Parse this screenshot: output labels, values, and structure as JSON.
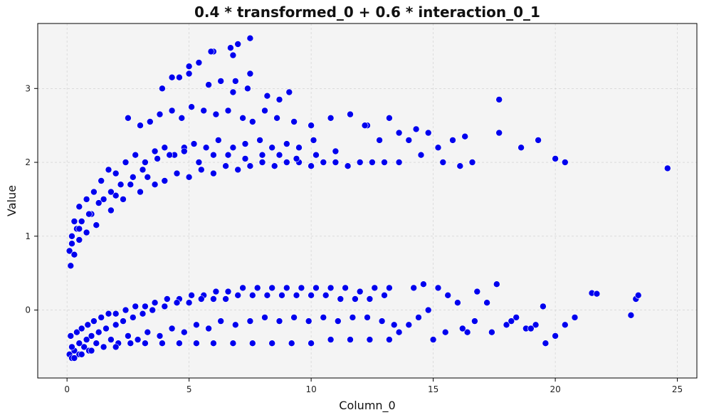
{
  "chart_data": {
    "type": "scatter",
    "title": "0.4 * transformed_0 + 0.6 * interaction_0_1",
    "xlabel": "Column_0",
    "ylabel": "Value",
    "xlim": [
      -1.2,
      25.8
    ],
    "ylim": [
      -0.92,
      3.88
    ],
    "x_ticks": [
      0,
      5,
      10,
      15,
      20,
      25
    ],
    "y_ticks": [
      0,
      1,
      2,
      3
    ],
    "grid": true,
    "colors": {
      "points": "#0000ee",
      "point_edge": "#ffffff",
      "background": "#f4f4f4",
      "grid": "#cccccc"
    },
    "series": [
      {
        "x": [
          0.1,
          0.15,
          0.2,
          0.3,
          0.4,
          0.5,
          0.6,
          0.8,
          1.0,
          1.2,
          1.5,
          1.8,
          2.0,
          2.3,
          2.6,
          3.0,
          3.3,
          3.6,
          4.0,
          4.5,
          5.0,
          5.5,
          6.0,
          6.5,
          7.0,
          7.5,
          8.0,
          8.5,
          9.0,
          9.5,
          10.0,
          10.5,
          11.0,
          11.5,
          12.0,
          12.5,
          13.0,
          0.3,
          0.5,
          0.8,
          1.1,
          1.4,
          1.7,
          2.0,
          2.4,
          2.8,
          3.2,
          3.6,
          4.0,
          4.4,
          4.8,
          5.2,
          5.7,
          6.2,
          6.8,
          7.3,
          7.9,
          8.4,
          9.0,
          9.5,
          10.1,
          0.2,
          0.5,
          0.9,
          1.3,
          1.8,
          2.2,
          2.7,
          3.1,
          3.7,
          4.2,
          4.8,
          5.4,
          6.0,
          6.6,
          7.3,
          8.0,
          8.7,
          9.4,
          10.2,
          11.0,
          2.5,
          3.0,
          3.4,
          3.8,
          4.3,
          4.7,
          5.1,
          5.6,
          6.1,
          6.6,
          7.2,
          7.6,
          8.1,
          8.6,
          9.3,
          10.0,
          10.8,
          11.6,
          12.3,
          3.9,
          4.6,
          5.0,
          5.8,
          6.3,
          6.8,
          7.4,
          8.2,
          8.7,
          9.1,
          4.3,
          5.0,
          5.4,
          6.0,
          6.7,
          7.0,
          7.5,
          5.9,
          6.8,
          6.9,
          7.5,
          13.2,
          13.6,
          14.0,
          14.3,
          14.8,
          15.2,
          15.8,
          16.3,
          16.6,
          17.7,
          17.7,
          18.6,
          19.3,
          20.0,
          20.4,
          24.6,
          12.2,
          12.8,
          13.6,
          14.5,
          15.4,
          16.1
        ],
        "y": [
          0.8,
          0.6,
          0.9,
          0.75,
          1.1,
          0.95,
          1.2,
          1.05,
          1.3,
          1.15,
          1.5,
          1.35,
          1.55,
          1.5,
          1.7,
          1.6,
          1.8,
          1.7,
          1.75,
          1.85,
          1.8,
          1.9,
          1.85,
          1.95,
          1.9,
          1.95,
          2.0,
          1.95,
          2.0,
          2.0,
          1.95,
          2.0,
          2.0,
          1.95,
          2.0,
          2.0,
          2.0,
          1.2,
          1.4,
          1.5,
          1.6,
          1.75,
          1.9,
          1.85,
          2.0,
          2.1,
          2.0,
          2.15,
          2.2,
          2.1,
          2.2,
          2.25,
          2.2,
          2.3,
          2.2,
          2.25,
          2.3,
          2.2,
          2.25,
          2.2,
          2.3,
          1.0,
          1.1,
          1.3,
          1.45,
          1.6,
          1.7,
          1.8,
          1.9,
          2.05,
          2.1,
          2.15,
          2.0,
          2.1,
          2.1,
          2.05,
          2.1,
          2.1,
          2.05,
          2.1,
          2.15,
          2.6,
          2.5,
          2.55,
          2.65,
          2.7,
          2.6,
          2.75,
          2.7,
          2.65,
          2.7,
          2.6,
          2.55,
          2.7,
          2.6,
          2.55,
          2.5,
          2.6,
          2.65,
          2.5,
          3.0,
          3.15,
          3.2,
          3.05,
          3.1,
          2.95,
          3.0,
          2.9,
          2.85,
          2.95,
          3.15,
          3.3,
          3.35,
          3.5,
          3.55,
          3.6,
          3.68,
          3.5,
          3.45,
          3.1,
          3.2,
          2.6,
          2.4,
          2.3,
          2.45,
          2.4,
          2.2,
          2.3,
          2.35,
          2.0,
          2.85,
          2.4,
          2.2,
          2.3,
          2.05,
          2.0,
          1.92,
          2.5,
          2.3,
          2.0,
          2.1,
          2.0,
          1.95
        ]
      },
      {
        "x": [
          0.1,
          0.2,
          0.3,
          0.5,
          0.7,
          0.9,
          1.2,
          1.5,
          1.8,
          2.1,
          2.5,
          2.9,
          3.3,
          3.8,
          4.3,
          4.8,
          5.3,
          5.8,
          6.3,
          6.9,
          7.5,
          8.1,
          8.7,
          9.3,
          9.9,
          10.5,
          11.1,
          11.7,
          12.3,
          12.9,
          13.4,
          0.15,
          0.4,
          0.6,
          0.85,
          1.1,
          1.4,
          1.7,
          2.0,
          2.4,
          2.8,
          3.2,
          3.6,
          4.1,
          4.6,
          5.1,
          5.6,
          6.1,
          6.6,
          7.2,
          7.8,
          8.4,
          9.0,
          9.6,
          10.2,
          10.8,
          11.4,
          12.0,
          12.6,
          13.2,
          0.2,
          0.5,
          0.8,
          1.0,
          1.3,
          1.6,
          2.0,
          2.3,
          2.7,
          3.1,
          3.5,
          4.0,
          4.5,
          5.0,
          5.5,
          6.0,
          6.5,
          7.0,
          7.6,
          8.2,
          8.8,
          9.4,
          10.0,
          10.6,
          11.2,
          11.8,
          12.4,
          13.0,
          0.3,
          0.6,
          1.0,
          1.5,
          2.0,
          2.6,
          3.2,
          3.9,
          4.6,
          5.3,
          6.0,
          6.8,
          7.6,
          8.4,
          9.2,
          10.0,
          10.8,
          11.6,
          12.4,
          13.2,
          13.6,
          14.0,
          14.4,
          14.8,
          15.2,
          15.6,
          16.0,
          16.4,
          16.8,
          17.2,
          17.6,
          18.0,
          18.4,
          18.8,
          19.2,
          19.6,
          20.0,
          20.4,
          20.8,
          21.5,
          21.7,
          23.1,
          23.3,
          23.4,
          14.2,
          14.6,
          15.0,
          15.5,
          16.2,
          16.7,
          17.4,
          18.2,
          19.0,
          19.5
        ],
        "y": [
          -0.6,
          -0.65,
          -0.55,
          -0.6,
          -0.5,
          -0.55,
          -0.45,
          -0.5,
          -0.4,
          -0.45,
          -0.35,
          -0.4,
          -0.3,
          -0.35,
          -0.25,
          -0.3,
          -0.2,
          -0.25,
          -0.15,
          -0.2,
          -0.15,
          -0.1,
          -0.15,
          -0.1,
          -0.15,
          -0.1,
          -0.15,
          -0.1,
          -0.1,
          -0.15,
          -0.2,
          -0.35,
          -0.3,
          -0.25,
          -0.2,
          -0.15,
          -0.1,
          -0.05,
          -0.05,
          0.0,
          0.05,
          0.05,
          0.1,
          0.15,
          0.15,
          0.2,
          0.2,
          0.25,
          0.25,
          0.3,
          0.3,
          0.3,
          0.3,
          0.3,
          0.3,
          0.3,
          0.3,
          0.25,
          0.3,
          0.3,
          -0.5,
          -0.45,
          -0.4,
          -0.35,
          -0.3,
          -0.25,
          -0.2,
          -0.15,
          -0.1,
          -0.05,
          0.0,
          0.05,
          0.1,
          0.1,
          0.15,
          0.15,
          0.15,
          0.2,
          0.2,
          0.2,
          0.2,
          0.2,
          0.2,
          0.2,
          0.15,
          0.15,
          0.15,
          0.2,
          -0.65,
          -0.6,
          -0.55,
          -0.5,
          -0.5,
          -0.45,
          -0.45,
          -0.45,
          -0.45,
          -0.45,
          -0.45,
          -0.45,
          -0.45,
          -0.45,
          -0.45,
          -0.45,
          -0.4,
          -0.4,
          -0.4,
          -0.4,
          -0.3,
          -0.2,
          -0.1,
          0.0,
          0.3,
          0.2,
          0.1,
          -0.3,
          0.25,
          0.1,
          0.35,
          -0.2,
          -0.1,
          -0.25,
          -0.2,
          -0.45,
          -0.35,
          -0.2,
          -0.1,
          0.23,
          0.22,
          -0.07,
          0.15,
          0.2,
          0.3,
          0.35,
          -0.4,
          -0.3,
          -0.25,
          -0.15,
          -0.3,
          -0.15,
          -0.25,
          0.05
        ]
      }
    ]
  }
}
